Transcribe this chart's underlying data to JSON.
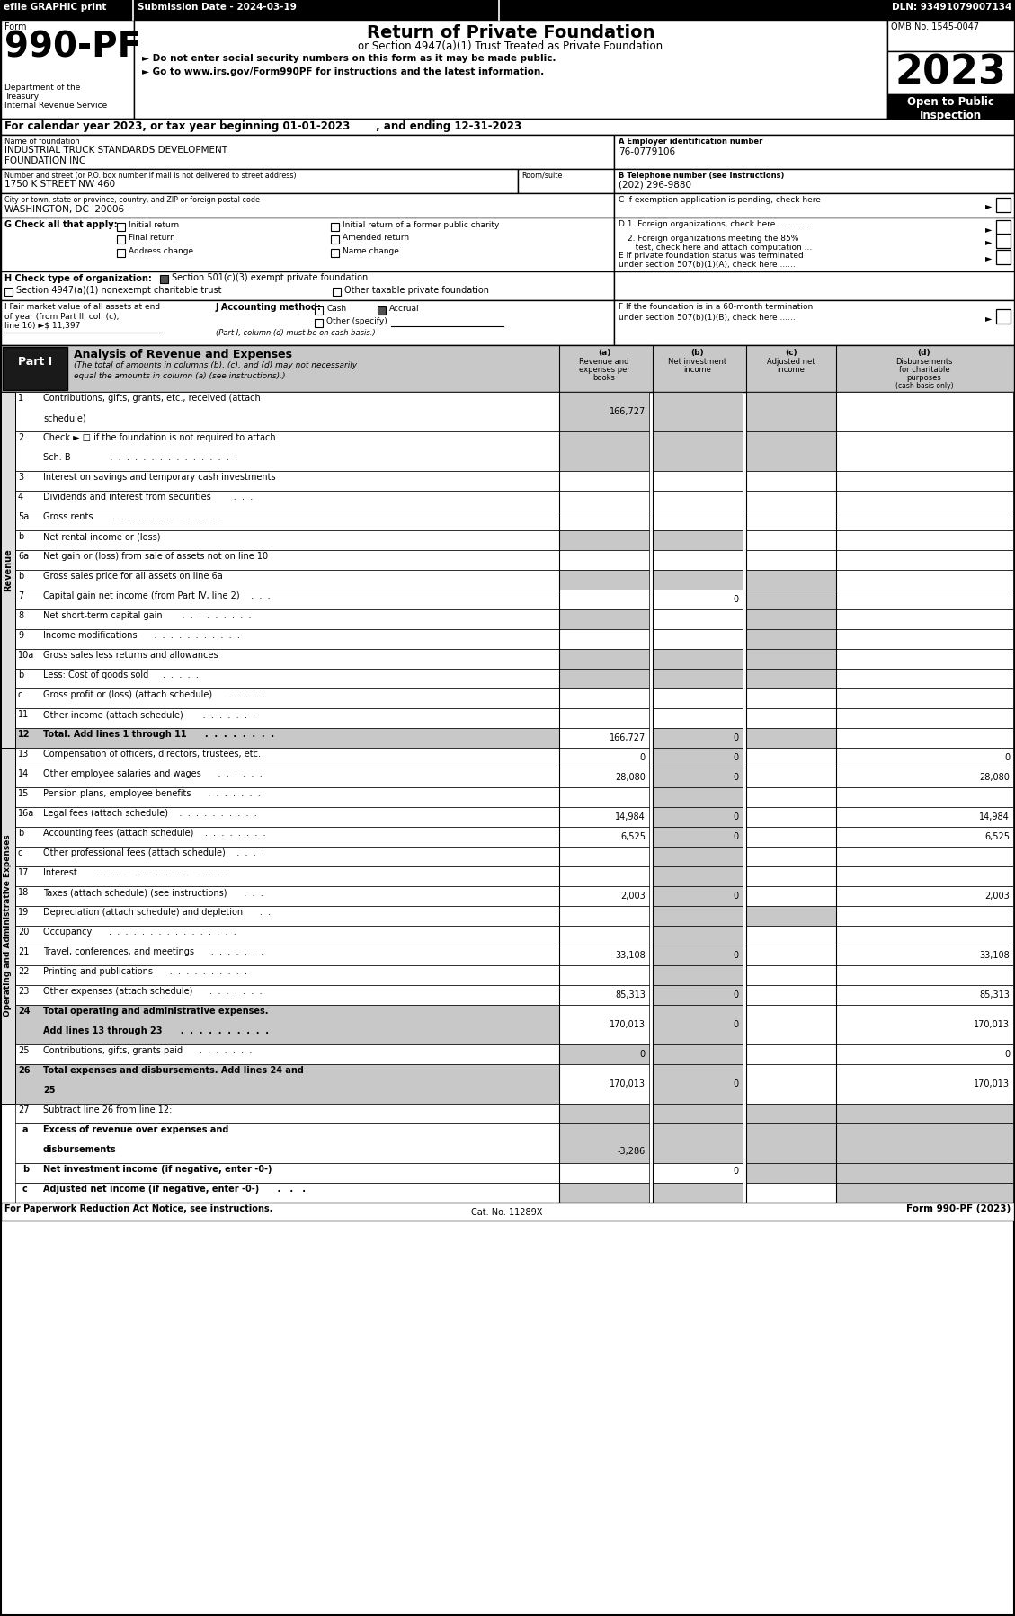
{
  "title_bar": {
    "efile_text": "efile GRAPHIC print",
    "submission_text": "Submission Date - 2024-03-19",
    "dln_text": "DLN: 93491079007134"
  },
  "form_header": {
    "form_label": "Form",
    "form_number": "990-PF",
    "title": "Return of Private Foundation",
    "subtitle1": "or Section 4947(a)(1) Trust Treated as Private Foundation",
    "subtitle2": "► Do not enter social security numbers on this form as it may be made public.",
    "subtitle3": "► Go to www.irs.gov/Form990PF for instructions and the latest information.",
    "omb_text": "OMB No. 1545-0047",
    "year": "2023",
    "open_text": "Open to Public\nInspection",
    "dept1": "Department of the",
    "dept2": "Treasury",
    "dept3": "Internal Revenue Service"
  },
  "calendar_line": "For calendar year 2023, or tax year beginning 01-01-2023       , and ending 12-31-2023",
  "foundation_name_label": "Name of foundation",
  "foundation_name_line1": "INDUSTRIAL TRUCK STANDARDS DEVELOPMENT",
  "foundation_name_line2": "FOUNDATION INC",
  "ein_label": "A Employer identification number",
  "ein": "76-0779106",
  "address_label": "Number and street (or P.O. box number if mail is not delivered to street address)",
  "address": "1750 K STREET NW 460",
  "room_label": "Room/suite",
  "phone_label": "B Telephone number (see instructions)",
  "phone": "(202) 296-9880",
  "city_label": "City or town, state or province, country, and ZIP or foreign postal code",
  "city": "WASHINGTON, DC  20006",
  "c_text": "C If exemption application is pending, check here",
  "d1_text": "D 1. Foreign organizations, check here.............",
  "d2_line1": "2. Foreign organizations meeting the 85%",
  "d2_line2": "   test, check here and attach computation ...",
  "e_line1": "E If private foundation status was terminated",
  "e_line2": "under section 507(b)(1)(A), check here ......",
  "f_line1": "F If the foundation is in a 60-month termination",
  "f_line2": "under section 507(b)(1)(B), check here ......",
  "i_line1": "I Fair market value of all assets at end",
  "i_line2": "of year (from Part II, col. (c),",
  "i_line3": "line 16) ►$ 11,397",
  "part1_label": "Part I",
  "part1_title": "Analysis of Revenue and Expenses",
  "part1_desc1": "(The total of amounts in columns (b), (c), and (d) may not necessarily",
  "part1_desc2": "equal the amounts in column (a) (see instructions).)",
  "col_a1": "(a)",
  "col_a2": "Revenue and",
  "col_a3": "expenses per",
  "col_a4": "books",
  "col_b1": "(b)",
  "col_b2": "Net investment",
  "col_b3": "income",
  "col_c1": "(c)",
  "col_c2": "Adjusted net",
  "col_c3": "income",
  "col_d1": "(d)",
  "col_d2": "Disbursements",
  "col_d3": "for charitable",
  "col_d4": "purposes",
  "col_d5": "(cash basis only)",
  "revenue_rows": [
    {
      "num": "1",
      "label1": "Contributions, gifts, grants, etc., received (attach",
      "label2": "schedule)",
      "a": "166,727",
      "b": "",
      "c": "",
      "d": "",
      "bg_b": true,
      "bg_c": true,
      "bg_d": true,
      "row2": true
    },
    {
      "num": "2",
      "label1": "Check ► □ if the foundation is not required to attach",
      "label2": "Sch. B              .  .  .  .  .  .  .  .  .  .  .  .  .  .  .  .",
      "a": "",
      "b": "",
      "c": "",
      "d": "",
      "bg_b": true,
      "bg_c": true,
      "bg_d": true,
      "row2": true
    },
    {
      "num": "3",
      "label1": "Interest on savings and temporary cash investments",
      "a": "",
      "b": "",
      "c": "",
      "d": "",
      "bg_b": false,
      "bg_c": false,
      "bg_d": false
    },
    {
      "num": "4",
      "label1": "Dividends and interest from securities        .  .  .",
      "a": "",
      "b": "",
      "c": "",
      "d": "",
      "bg_b": false,
      "bg_c": false,
      "bg_d": false
    },
    {
      "num": "5a",
      "label1": "Gross rents       .  .  .  .  .  .  .  .  .  .  .  .  .  .",
      "a": "",
      "b": "",
      "c": "",
      "d": "",
      "bg_b": false,
      "bg_c": false,
      "bg_d": false
    },
    {
      "num": "b",
      "label1": "Net rental income or (loss)",
      "underline": true,
      "a": "",
      "b": "",
      "c": "",
      "d": "",
      "bg_b": true,
      "bg_c": true,
      "bg_d": false
    },
    {
      "num": "6a",
      "label1": "Net gain or (loss) from sale of assets not on line 10",
      "a": "",
      "b": "",
      "c": "",
      "d": "",
      "bg_b": false,
      "bg_c": false,
      "bg_d": false
    },
    {
      "num": "b",
      "label1": "Gross sales price for all assets on line 6a",
      "underline": true,
      "a": "",
      "b": "",
      "c": "",
      "d": "",
      "bg_b": true,
      "bg_c": true,
      "bg_d": true
    },
    {
      "num": "7",
      "label1": "Capital gain net income (from Part IV, line 2)    .  .  .",
      "a": "",
      "b": "0",
      "c": "",
      "d": "",
      "bg_b": false,
      "bg_c": false,
      "bg_d": true
    },
    {
      "num": "8",
      "label1": "Net short-term capital gain       .  .  .  .  .  .  .  .  .",
      "a": "",
      "b": "",
      "c": "",
      "d": "",
      "bg_b": true,
      "bg_c": false,
      "bg_d": true
    },
    {
      "num": "9",
      "label1": "Income modifications      .  .  .  .  .  .  .  .  .  .  .",
      "a": "",
      "b": "",
      "c": "",
      "d": "",
      "bg_b": false,
      "bg_c": false,
      "bg_d": true
    },
    {
      "num": "10a",
      "label1": "Gross sales less returns and allowances",
      "underline_short": true,
      "a": "",
      "b": "",
      "c": "",
      "d": "",
      "bg_b": true,
      "bg_c": true,
      "bg_d": true
    },
    {
      "num": "b",
      "label1": "Less: Cost of goods sold     .  .  .  .  .",
      "underline_short2": true,
      "a": "",
      "b": "",
      "c": "",
      "d": "",
      "bg_b": true,
      "bg_c": true,
      "bg_d": true
    },
    {
      "num": "c",
      "label1": "Gross profit or (loss) (attach schedule)      .  .  .  .  .",
      "a": "",
      "b": "",
      "c": "",
      "d": "",
      "bg_b": false,
      "bg_c": false,
      "bg_d": false
    },
    {
      "num": "11",
      "label1": "Other income (attach schedule)       .  .  .  .  .  .  .",
      "a": "",
      "b": "",
      "c": "",
      "d": "",
      "bg_b": false,
      "bg_c": false,
      "bg_d": false
    },
    {
      "num": "12",
      "label1": "Total. Add lines 1 through 11      .  .  .  .  .  .  .  .",
      "a": "166,727",
      "b": "0",
      "c": "",
      "d": "",
      "bold": true,
      "bg_b": false,
      "bg_c": true,
      "bg_d": true
    }
  ],
  "expense_rows": [
    {
      "num": "13",
      "label1": "Compensation of officers, directors, trustees, etc.",
      "a": "0",
      "b": "0",
      "c": "",
      "d": "0",
      "bg_b": false,
      "bg_c": true,
      "bg_d": false
    },
    {
      "num": "14",
      "label1": "Other employee salaries and wages      .  .  .  .  .  .",
      "a": "28,080",
      "b": "0",
      "c": "",
      "d": "28,080",
      "bg_b": false,
      "bg_c": true,
      "bg_d": false
    },
    {
      "num": "15",
      "label1": "Pension plans, employee benefits      .  .  .  .  .  .  .",
      "a": "",
      "b": "",
      "c": "",
      "d": "",
      "bg_b": false,
      "bg_c": true,
      "bg_d": false
    },
    {
      "num": "16a",
      "label1": "Legal fees (attach schedule)    .  .  .  .  .  .  .  .  .  .",
      "a": "14,984",
      "b": "0",
      "c": "",
      "d": "14,984",
      "bg_b": false,
      "bg_c": true,
      "bg_d": false
    },
    {
      "num": "b",
      "label1": "Accounting fees (attach schedule)    .  .  .  .  .  .  .  .",
      "a": "6,525",
      "b": "0",
      "c": "",
      "d": "6,525",
      "bg_b": false,
      "bg_c": true,
      "bg_d": false
    },
    {
      "num": "c",
      "label1": "Other professional fees (attach schedule)    .  .  .  .",
      "a": "",
      "b": "",
      "c": "",
      "d": "",
      "bg_b": false,
      "bg_c": true,
      "bg_d": false
    },
    {
      "num": "17",
      "label1": "Interest      .  .  .  .  .  .  .  .  .  .  .  .  .  .  .  .  .",
      "a": "",
      "b": "",
      "c": "",
      "d": "",
      "bg_b": false,
      "bg_c": true,
      "bg_d": false
    },
    {
      "num": "18",
      "label1": "Taxes (attach schedule) (see instructions)      .  .  .",
      "a": "2,003",
      "b": "0",
      "c": "",
      "d": "2,003",
      "bg_b": false,
      "bg_c": true,
      "bg_d": false
    },
    {
      "num": "19",
      "label1": "Depreciation (attach schedule) and depletion      .  .",
      "a": "",
      "b": "",
      "c": "",
      "d": "",
      "bg_b": false,
      "bg_c": true,
      "bg_d": true
    },
    {
      "num": "20",
      "label1": "Occupancy      .  .  .  .  .  .  .  .  .  .  .  .  .  .  .  .",
      "a": "",
      "b": "",
      "c": "",
      "d": "",
      "bg_b": false,
      "bg_c": true,
      "bg_d": false
    },
    {
      "num": "21",
      "label1": "Travel, conferences, and meetings      .  .  .  .  .  .  .",
      "a": "33,108",
      "b": "0",
      "c": "",
      "d": "33,108",
      "bg_b": false,
      "bg_c": true,
      "bg_d": false
    },
    {
      "num": "22",
      "label1": "Printing and publications      .  .  .  .  .  .  .  .  .  .",
      "a": "",
      "b": "",
      "c": "",
      "d": "",
      "bg_b": false,
      "bg_c": true,
      "bg_d": false
    },
    {
      "num": "23",
      "label1": "Other expenses (attach schedule)      .  .  .  .  .  .  .",
      "a": "85,313",
      "b": "0",
      "c": "",
      "d": "85,313",
      "bg_b": false,
      "bg_c": true,
      "bg_d": false
    },
    {
      "num": "24",
      "label1": "Total operating and administrative expenses.",
      "label2": "Add lines 13 through 23      .  .  .  .  .  .  .  .  .  .",
      "a": "170,013",
      "b": "0",
      "c": "",
      "d": "170,013",
      "bold": true,
      "bg_b": false,
      "bg_c": true,
      "bg_d": false,
      "row2": true
    },
    {
      "num": "25",
      "label1": "Contributions, gifts, grants paid      .  .  .  .  .  .  .",
      "a": "0",
      "b": "",
      "c": "",
      "d": "0",
      "bg_b": true,
      "bg_c": true,
      "bg_d": false
    },
    {
      "num": "26",
      "label1": "Total expenses and disbursements. Add lines 24 and",
      "label2": "25",
      "a": "170,013",
      "b": "0",
      "c": "",
      "d": "170,013",
      "bold": true,
      "bg_b": false,
      "bg_c": true,
      "bg_d": false,
      "row2": true
    }
  ],
  "footer_left": "For Paperwork Reduction Act Notice, see instructions.",
  "footer_cat": "Cat. No. 11289X",
  "footer_right": "Form 990-PF (2023)"
}
